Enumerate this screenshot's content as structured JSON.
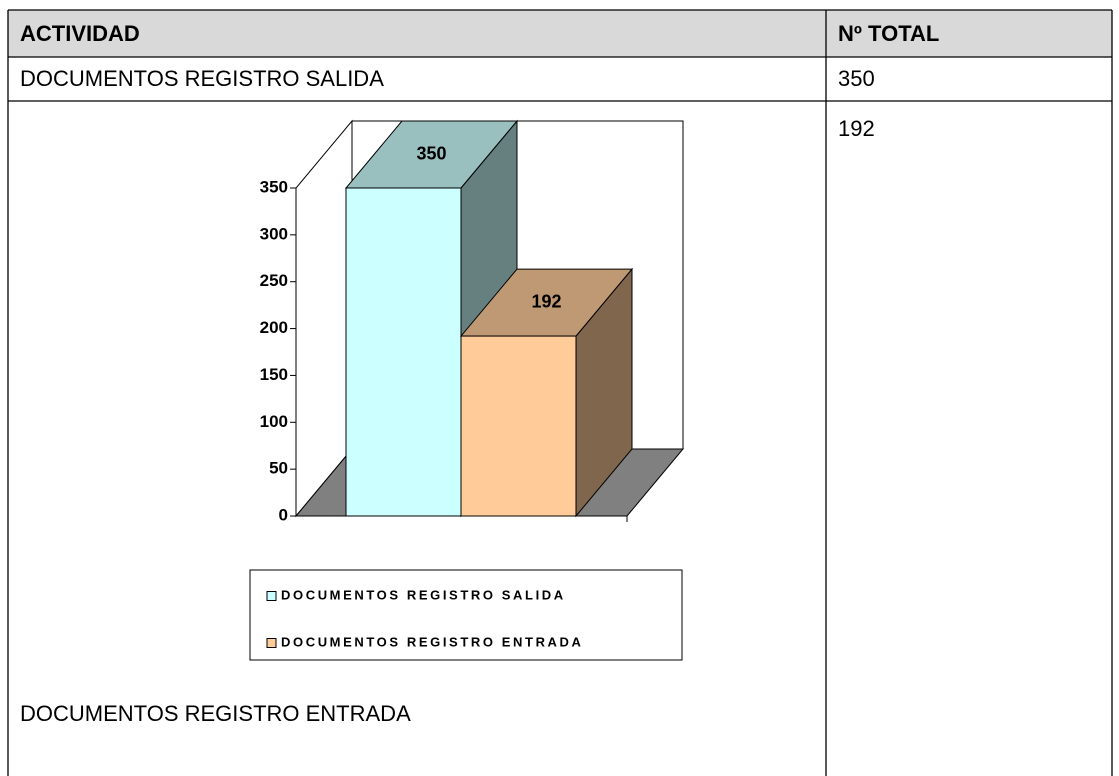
{
  "table": {
    "header": [
      "ACTIVIDAD",
      "Nº TOTAL"
    ],
    "rows": [
      [
        "DOCUMENTOS REGISTRO SALIDA",
        350
      ],
      [
        "DOCUMENTOS REGISTRO ENTRADA",
        192
      ]
    ]
  },
  "chart_data": {
    "type": "bar3d",
    "series": [
      {
        "name": "DOCUMENTOS REGISTRO SALIDA",
        "color": "#ccffff",
        "values": [
          350
        ]
      },
      {
        "name": "DOCUMENTOS REGISTRO ENTRADA",
        "color": "#ffcc99",
        "values": [
          192
        ]
      }
    ],
    "ylim": [
      0,
      350
    ],
    "yticks": [
      0,
      50,
      100,
      150,
      200,
      250,
      300,
      350
    ],
    "legend": "bottom"
  }
}
